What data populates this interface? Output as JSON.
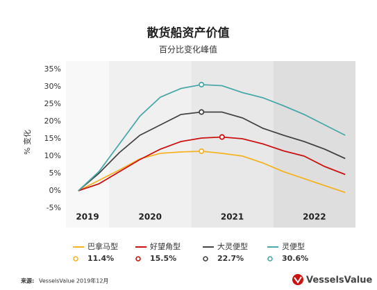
{
  "chart_data": {
    "type": "line",
    "title": "散货船资产价值",
    "subtitle": "百分比变化峰值",
    "ylabel": "% 变化",
    "x": [
      2019.625,
      2019.875,
      2020.125,
      2020.375,
      2020.625,
      2020.875,
      2021.125,
      2021.375,
      2021.625,
      2021.875,
      2022.125,
      2022.375,
      2022.625,
      2022.875
    ],
    "xlim": [
      2019.475,
      2023
    ],
    "xticks": [
      {
        "value": 2019.5,
        "label": "2019"
      },
      {
        "value": 2020.5,
        "label": "2020"
      },
      {
        "value": 2021.5,
        "label": "2021"
      },
      {
        "value": 2022.5,
        "label": "2022"
      }
    ],
    "band_colors": [
      "#f8f8f8",
      "#f0f0f0",
      "#e8e8e8",
      "#dedede"
    ],
    "ylim": [
      -5,
      35
    ],
    "yticks": [
      {
        "value": -5,
        "label": "-5%"
      },
      {
        "value": 0,
        "label": "0%"
      },
      {
        "value": 5,
        "label": "5%"
      },
      {
        "value": 10,
        "label": "10%"
      },
      {
        "value": 15,
        "label": "15%"
      },
      {
        "value": 20,
        "label": "20%"
      },
      {
        "value": 25,
        "label": "25%"
      },
      {
        "value": 30,
        "label": "30%"
      },
      {
        "value": 35,
        "label": "35%"
      }
    ],
    "grid": false,
    "series": [
      {
        "name": "巴拿马型",
        "color": "#f5b323",
        "peak_label": "11.4%",
        "values": [
          0,
          3,
          6,
          9.2,
          10.8,
          11.2,
          11.4,
          10.8,
          10,
          8,
          5.5,
          3.5,
          1.5,
          -0.5
        ]
      },
      {
        "name": "好望角型",
        "color": "#cc1111",
        "peak_label": "15.5%",
        "values": [
          0,
          2,
          5.5,
          9,
          12,
          14.2,
          15.2,
          15.5,
          15,
          13.5,
          11.5,
          10,
          7,
          4.7
        ]
      },
      {
        "name": "大灵便型",
        "color": "#444444",
        "peak_label": "22.7%",
        "values": [
          0,
          5,
          11,
          16,
          19,
          22,
          22.7,
          22.7,
          21,
          18,
          16,
          14.2,
          12,
          9.3
        ]
      },
      {
        "name": "灵便型",
        "color": "#4aa8a8",
        "peak_label": "30.6%",
        "values": [
          0,
          5.5,
          13.5,
          21.5,
          27,
          29.5,
          30.6,
          30.3,
          28.3,
          26.8,
          24.5,
          22,
          19,
          16
        ]
      }
    ],
    "source": {
      "label": "来源:",
      "text": "VesselsValue 2019年12月"
    },
    "logo": "VesselsValue"
  }
}
